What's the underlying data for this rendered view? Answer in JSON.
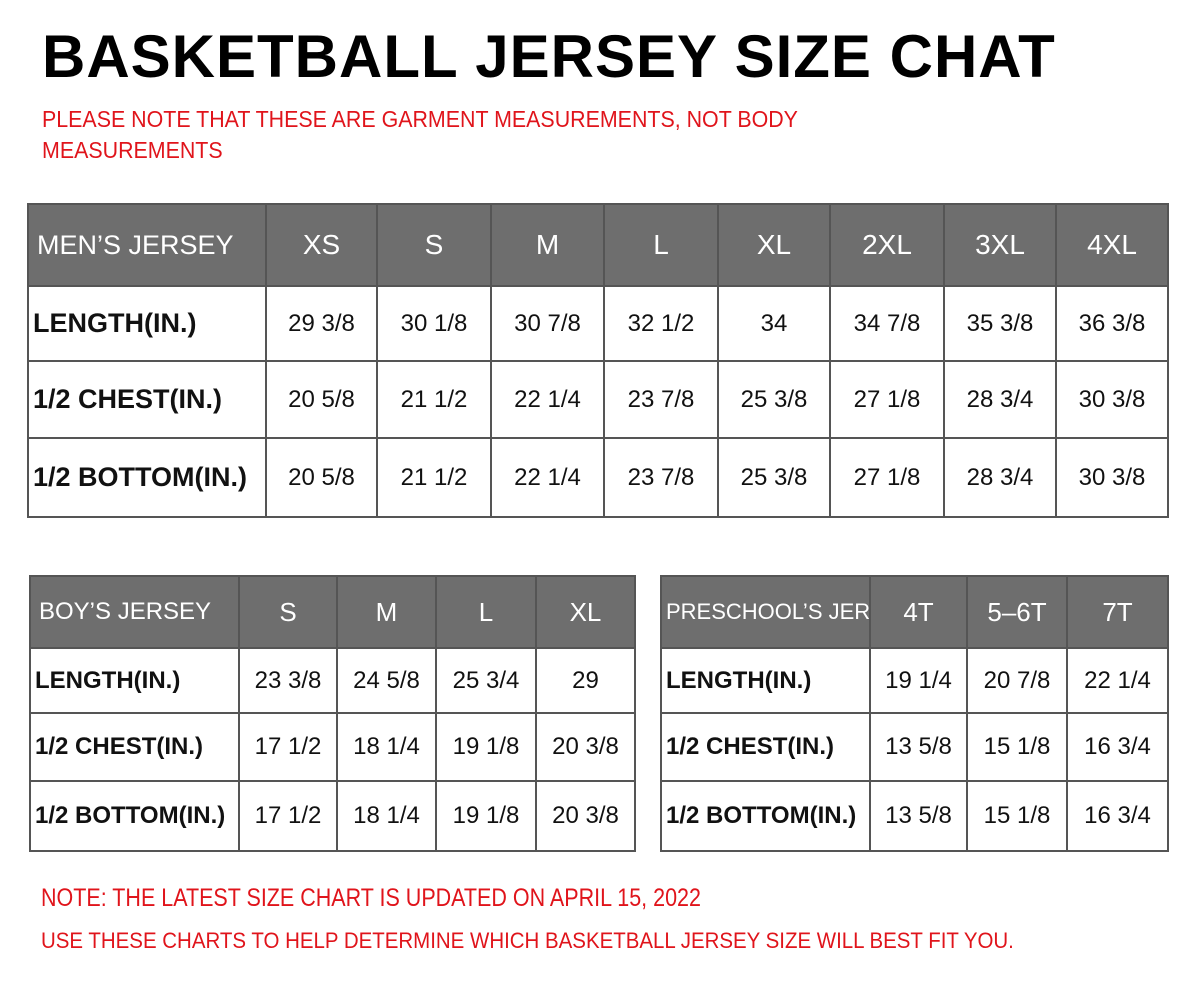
{
  "title": "BASKETBALL JERSEY SIZE CHAT",
  "note_top": "PLEASE NOTE THAT THESE ARE GARMENT MEASUREMENTS, NOT BODY MEASUREMENTS",
  "note_updated": "NOTE: THE LATEST SIZE CHART IS UPDATED ON APRIL 15, 2022",
  "note_usage": "USE THESE CHARTS TO HELP DETERMINE WHICH  BASKETBALL JERSEY  SIZE WILL BEST FIT YOU.",
  "colors": {
    "header_bg": "#6e6e6e",
    "note_red": "#e0141b"
  },
  "tables": {
    "mens": {
      "header": [
        "MEN’S JERSEY",
        "XS",
        "S",
        "M",
        "L",
        "XL",
        "2XL",
        "3XL",
        "4XL"
      ],
      "rows": [
        [
          "LENGTH(IN.)",
          "29  3/8",
          "30  1/8",
          "30  7/8",
          "32  1/2",
          "34",
          "34  7/8",
          "35  3/8",
          "36  3/8"
        ],
        [
          "1/2  CHEST(IN.)",
          "20  5/8",
          "21  1/2",
          "22  1/4",
          "23  7/8",
          "25  3/8",
          "27  1/8",
          "28  3/4",
          "30  3/8"
        ],
        [
          "1/2  BOTTOM(IN.)",
          "20  5/8",
          "21  1/2",
          "22  1/4",
          "23  7/8",
          "25  3/8",
          "27  1/8",
          "28  3/4",
          "30  3/8"
        ]
      ]
    },
    "boys": {
      "header": [
        "BOY’S JERSEY",
        "S",
        "M",
        "L",
        "XL"
      ],
      "rows": [
        [
          "LENGTH(IN.)",
          "23  3/8",
          "24  5/8",
          "25  3/4",
          "29"
        ],
        [
          "1/2  CHEST(IN.)",
          "17  1/2",
          "18  1/4",
          "19  1/8",
          "20  3/8"
        ],
        [
          "1/2  BOTTOM(IN.)",
          "17  1/2",
          "18  1/4",
          "19  1/8",
          "20  3/8"
        ]
      ]
    },
    "preschool": {
      "header": [
        "PRESCHOOL’S JERSEY",
        "4T",
        "5–6T",
        "7T"
      ],
      "rows": [
        [
          "LENGTH(IN.)",
          "19  1/4",
          "20  7/8",
          "22  1/4"
        ],
        [
          "1/2  CHEST(IN.)",
          "13  5/8",
          "15  1/8",
          "16  3/4"
        ],
        [
          "1/2  BOTTOM(IN.)",
          "13  5/8",
          "15  1/8",
          "16  3/4"
        ]
      ]
    }
  }
}
